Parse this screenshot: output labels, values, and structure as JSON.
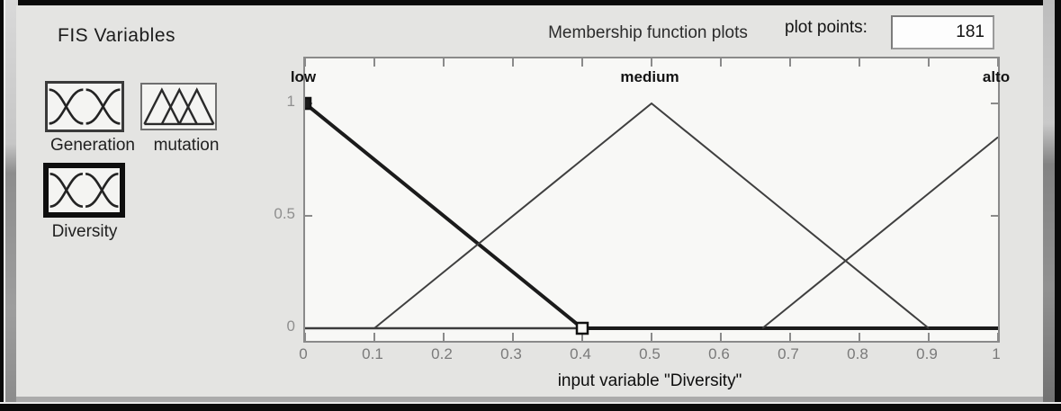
{
  "window": {
    "app": "Membership Function Editor"
  },
  "fis_variables": {
    "title": "FIS Variables",
    "items": [
      {
        "label": "Generation",
        "icon": "mf-curves-icon",
        "selected": false
      },
      {
        "label": "mutation",
        "icon": "mf-triangles-icon",
        "selected": false
      },
      {
        "label": "Diversity",
        "icon": "mf-curves-icon",
        "selected": true
      }
    ]
  },
  "plot_header": {
    "title": "Membership function plots",
    "plot_points_label": "plot points:",
    "plot_points_value": "181"
  },
  "chart_data": {
    "type": "line",
    "title": "Membership function plots",
    "xlabel": "input variable \"Diversity\"",
    "ylabel": "",
    "xlim": [
      0,
      1
    ],
    "ylim": [
      0,
      1
    ],
    "grid": false,
    "x_ticks": {
      "values": [
        0,
        0.1,
        0.2,
        0.3,
        0.4,
        0.5,
        0.6,
        0.7,
        0.8,
        0.9,
        1
      ],
      "labels": [
        "0",
        "0.1",
        "0.2",
        "0.3",
        "0.4",
        "0.5",
        "0.6",
        "0.7",
        "0.8",
        "0.9",
        "1"
      ]
    },
    "y_ticks": {
      "values": [
        0,
        0.5,
        1
      ],
      "labels": [
        "0",
        "0.5",
        "1"
      ]
    },
    "mf_labels": [
      {
        "name": "low",
        "x": 0
      },
      {
        "name": "medium",
        "x": 0.5
      },
      {
        "name": "alto",
        "x": 1
      }
    ],
    "series": [
      {
        "name": "low",
        "selected": true,
        "points": [
          [
            0,
            1
          ],
          [
            0.4,
            0
          ],
          [
            1,
            0
          ]
        ],
        "markers": [
          {
            "x": 0,
            "y": 1,
            "style": "solid"
          },
          {
            "x": 0.4,
            "y": 0,
            "style": "open"
          }
        ]
      },
      {
        "name": "medium",
        "selected": false,
        "points": [
          [
            0.1,
            0
          ],
          [
            0.5,
            1
          ],
          [
            0.9,
            0
          ]
        ]
      },
      {
        "name": "alto",
        "selected": false,
        "points": [
          [
            0.66,
            0
          ],
          [
            1,
            0.85
          ]
        ]
      }
    ],
    "baseline_y": 0,
    "colors": {
      "selected_line": "#1b1b1b",
      "line": "#3f3f3f",
      "tick": "#8a8a8a",
      "axis_border": "#8a8a8a"
    }
  }
}
